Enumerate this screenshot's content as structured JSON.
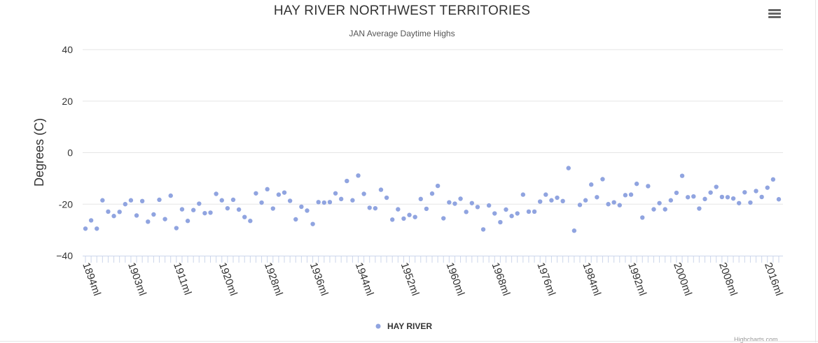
{
  "menu": {
    "icon": "hamburger-menu-icon"
  },
  "credits": "Highcharts.com",
  "chart_data": {
    "type": "scatter",
    "title": "HAY RIVER NORTHWEST TERRITORIES",
    "subtitle": "JAN Average Daytime Highs",
    "ylabel": "Degrees (C)",
    "xlabel": "",
    "ylim": [
      -40,
      40
    ],
    "yticks": [
      40,
      20,
      0,
      -20,
      -40
    ],
    "ytick_labels": [
      "40",
      "20",
      "0",
      "-20",
      "−40"
    ],
    "grid": true,
    "legend": "bottom-center",
    "x_first_year": 1894,
    "x_last_year": 2016,
    "xtick_labels": [
      "1894ml",
      "1903ml",
      "1911ml",
      "1920ml",
      "1928ml",
      "1936ml",
      "1944ml",
      "1952ml",
      "1960ml",
      "1968ml",
      "1976ml",
      "1984ml",
      "1992ml",
      "2000ml",
      "2008ml",
      "2016ml"
    ],
    "xtick_years": [
      1894,
      1902,
      1910,
      1918,
      1926,
      1934,
      1942,
      1950,
      1958,
      1966,
      1974,
      1982,
      1990,
      1998,
      2006,
      2014
    ],
    "series": [
      {
        "name": "HAY RIVER",
        "color": "#90a4e0",
        "values": [
          -29.5,
          -26.3,
          -29.5,
          -18.5,
          -22.9,
          -24.6,
          -23.0,
          -20.0,
          -18.5,
          -24.4,
          -18.8,
          -26.8,
          -24.0,
          -18.3,
          -25.8,
          -16.7,
          -29.3,
          -22.0,
          -26.5,
          -22.3,
          -19.8,
          -23.5,
          -23.3,
          -16.0,
          -18.5,
          -21.6,
          -18.3,
          -22.1,
          -25.0,
          -26.5,
          -15.8,
          -19.4,
          -14.2,
          -21.7,
          -16.3,
          -15.5,
          -18.7,
          -25.9,
          -21.0,
          -22.5,
          -27.7,
          -19.2,
          -19.4,
          -19.2,
          -15.8,
          -18.0,
          -11.0,
          -18.5,
          -8.9,
          -16.0,
          -21.4,
          -21.6,
          -14.4,
          -17.5,
          -26.0,
          -22.0,
          -25.6,
          -24.2,
          -25.0,
          -18.0,
          -21.8,
          -15.9,
          -12.9,
          -25.5,
          -19.3,
          -19.8,
          -17.9,
          -23.0,
          -19.6,
          -21.1,
          -29.8,
          -20.5,
          -23.6,
          -27.0,
          -22.1,
          -24.6,
          -23.6,
          -16.3,
          -22.9,
          -22.9,
          -19.0,
          -16.3,
          -18.5,
          -17.5,
          -18.8,
          -6.0,
          -30.3,
          -20.3,
          -18.5,
          -12.4,
          -17.3,
          -10.3,
          -20.0,
          -19.3,
          -20.4,
          -16.5,
          -16.3,
          -12.1,
          -25.2,
          -13.0,
          -22.0,
          -19.6,
          -22.0,
          -18.5,
          -15.6,
          -9.0,
          -17.3,
          -17.0,
          -21.7,
          -18.0,
          -15.5,
          -13.3,
          -17.2,
          -17.3,
          -17.8,
          -19.6,
          -15.4,
          -19.4,
          -14.9,
          -17.2,
          -13.6,
          -10.4,
          -18.1
        ]
      }
    ]
  }
}
